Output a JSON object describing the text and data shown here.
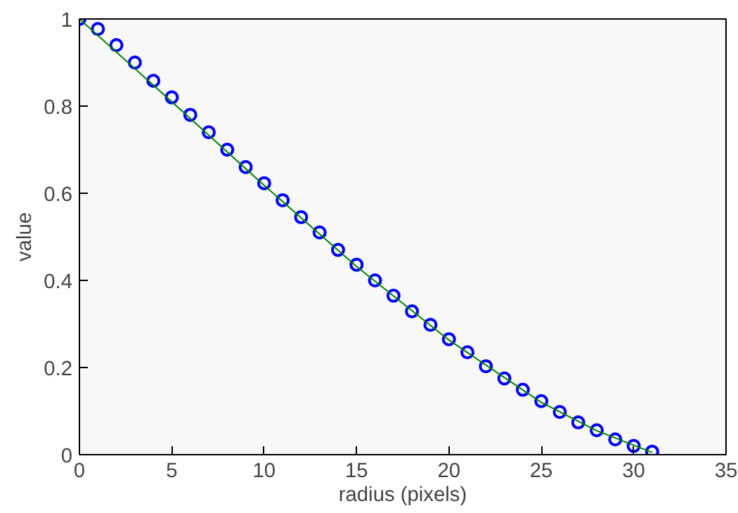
{
  "chart_data": {
    "type": "scatter",
    "xlabel": "radius (pixels)",
    "ylabel": "value",
    "xlim": [
      0,
      35
    ],
    "ylim": [
      0,
      1
    ],
    "xticks": [
      0,
      5,
      10,
      15,
      20,
      25,
      30,
      35
    ],
    "yticks": [
      0,
      0.2,
      0.4,
      0.6,
      0.8,
      1
    ],
    "grid": false,
    "series": [
      {
        "marker": "circle",
        "color": "#0000ff",
        "x": [
          0,
          1,
          2,
          3,
          4,
          5,
          6,
          7,
          8,
          9,
          10,
          11,
          12,
          13,
          14,
          15,
          16,
          17,
          18,
          19,
          20,
          21,
          22,
          23,
          24,
          25,
          26,
          27,
          28,
          29,
          30,
          31
        ],
        "values": [
          1.0,
          0.977,
          0.94,
          0.9,
          0.858,
          0.82,
          0.78,
          0.74,
          0.7,
          0.66,
          0.623,
          0.584,
          0.545,
          0.51,
          0.47,
          0.436,
          0.4,
          0.365,
          0.329,
          0.298,
          0.265,
          0.235,
          0.203,
          0.175,
          0.149,
          0.123,
          0.098,
          0.074,
          0.056,
          0.035,
          0.02,
          0.007
        ]
      },
      {
        "type": "line",
        "marker": "none",
        "line_style": "solid",
        "color": "#008000",
        "x": [
          0,
          5,
          10,
          15,
          20,
          25,
          28,
          31
        ],
        "values": [
          1.0,
          0.81,
          0.618,
          0.432,
          0.263,
          0.12,
          0.055,
          0.005
        ]
      }
    ]
  }
}
